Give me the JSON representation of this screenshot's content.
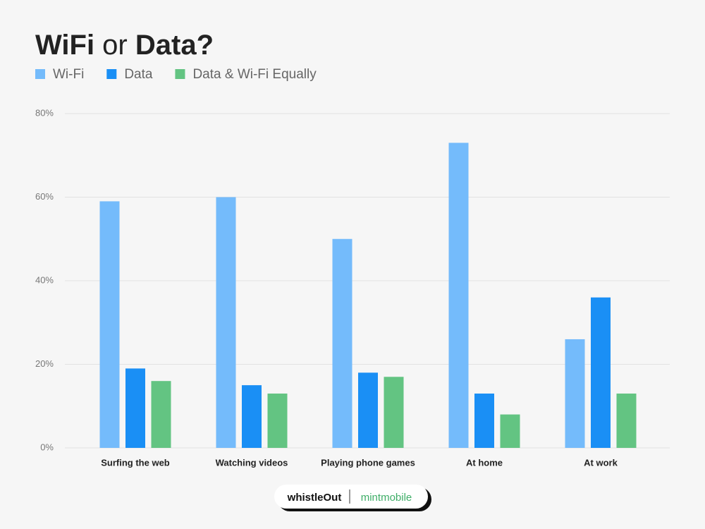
{
  "chart_data": {
    "type": "bar",
    "title": "WiFi or Data?",
    "categories": [
      "Surfing the web",
      "Watching videos",
      "Playing phone games",
      "At home",
      "At work"
    ],
    "series": [
      {
        "name": "Wi-Fi",
        "color": "#74bbfb",
        "values": [
          59,
          60,
          50,
          73,
          26
        ]
      },
      {
        "name": "Data",
        "color": "#1a8ff5",
        "values": [
          19,
          15,
          18,
          13,
          36
        ]
      },
      {
        "name": "Data & Wi-Fi Equally",
        "color": "#63c482",
        "values": [
          16,
          13,
          17,
          8,
          13
        ]
      }
    ],
    "ylim": [
      0,
      80
    ],
    "yticks": [
      {
        "value": 0,
        "label": "0%"
      },
      {
        "value": 20,
        "label": "20%"
      },
      {
        "value": 40,
        "label": "40%"
      },
      {
        "value": 60,
        "label": "60%"
      },
      {
        "value": 80,
        "label": "80%"
      }
    ],
    "grid": true,
    "legend": "top-left",
    "logos": [
      "whistleOut",
      "mintmobile"
    ]
  }
}
